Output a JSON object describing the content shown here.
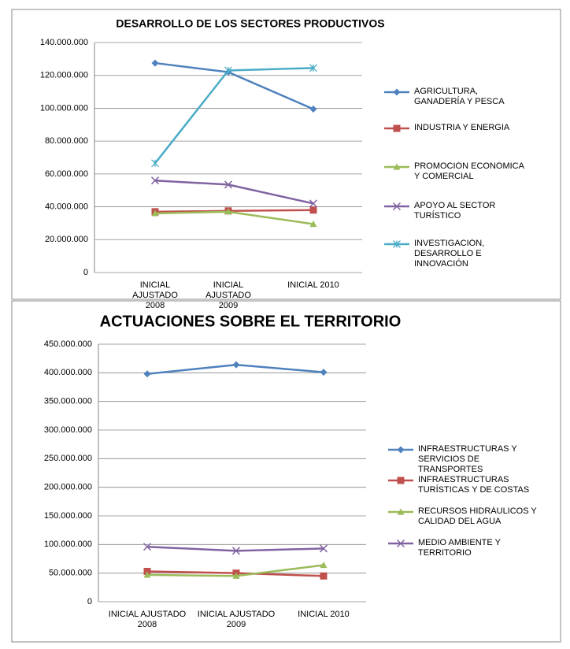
{
  "chart_data": [
    {
      "type": "line",
      "title": "DESARROLLO DE LOS SECTORES PRODUCTIVOS",
      "categories": [
        "INICIAL AJUSTADO 2008",
        "INICIAL AJUSTADO 2009",
        "INICIAL 2010"
      ],
      "ylim": [
        0,
        140000000
      ],
      "yticks": [
        0,
        {
          "value": 20000000,
          "label": "20.000.000"
        },
        {
          "value": 40000000,
          "label": "40.000.000"
        },
        {
          "value": 60000000,
          "label": "60.000.000"
        },
        {
          "value": 80000000,
          "label": "80.000.000"
        },
        {
          "value": 100000000,
          "label": "100.000.000"
        },
        {
          "value": 120000000,
          "label": "120.000.000"
        },
        {
          "value": 140000000,
          "label": "140.000.000"
        }
      ],
      "grid": true,
      "legend": "right",
      "series": [
        {
          "name": "AGRICULTURA, GANADERÍA Y PESCA",
          "color": "#4F81BD",
          "marker": "diamond",
          "values": [
            127500000,
            122000000,
            99500000
          ]
        },
        {
          "name": "INDUSTRIA  Y ENERGIA",
          "color": "#C0504D",
          "marker": "square",
          "values": [
            37000000,
            37500000,
            38000000
          ]
        },
        {
          "name": "PROMOCIÓN ECONÓMICA Y COMERCIAL",
          "color": "#9BBB59",
          "marker": "triangle",
          "values": [
            36000000,
            37000000,
            29500000
          ]
        },
        {
          "name": "APOYO AL SECTOR TURÍSTICO",
          "color": "#8064A2",
          "marker": "x",
          "values": [
            56000000,
            53500000,
            42000000
          ]
        },
        {
          "name": "INVESTIGACIÓN, DESARROLLO E INNOVACIÓN",
          "color": "#4BACC6",
          "marker": "star",
          "values": [
            66500000,
            123000000,
            124500000
          ]
        }
      ]
    },
    {
      "type": "line",
      "title": "ACTUACIONES SOBRE EL TERRITORIO",
      "categories": [
        "INICIAL AJUSTADO 2008",
        "INICIAL AJUSTADO 2009",
        "INICIAL 2010"
      ],
      "ylim": [
        0,
        450000000
      ],
      "yticks": [
        0,
        {
          "value": 50000000,
          "label": "50.000.000"
        },
        {
          "value": 100000000,
          "label": "100.000.000"
        },
        {
          "value": 150000000,
          "label": "150.000.000"
        },
        {
          "value": 200000000,
          "label": "200.000.000"
        },
        {
          "value": 250000000,
          "label": "250.000.000"
        },
        {
          "value": 300000000,
          "label": "300.000.000"
        },
        {
          "value": 350000000,
          "label": "350.000.000"
        },
        {
          "value": 400000000,
          "label": "400.000.000"
        },
        {
          "value": 450000000,
          "label": "450.000.000"
        }
      ],
      "grid": true,
      "legend": "right",
      "series": [
        {
          "name": "INFRAESTRUCTURAS  Y SERVICIOS DE TRANSPORTES",
          "color": "#4F81BD",
          "marker": "diamond",
          "values": [
            398000000,
            414000000,
            401000000
          ]
        },
        {
          "name": "INFRAESTRUCTURAS TURÍSTICAS Y DE COSTAS",
          "color": "#C0504D",
          "marker": "square",
          "values": [
            53000000,
            50000000,
            45000000
          ]
        },
        {
          "name": "RECURSOS HIDRÁULICOS Y CALIDAD DEL AGUA",
          "color": "#9BBB59",
          "marker": "triangle",
          "values": [
            47000000,
            45000000,
            64000000
          ]
        },
        {
          "name": "MEDIO AMBIENTE  Y TERRITORIO",
          "color": "#8064A2",
          "marker": "x",
          "values": [
            96000000,
            89000000,
            93000000
          ]
        }
      ]
    }
  ]
}
